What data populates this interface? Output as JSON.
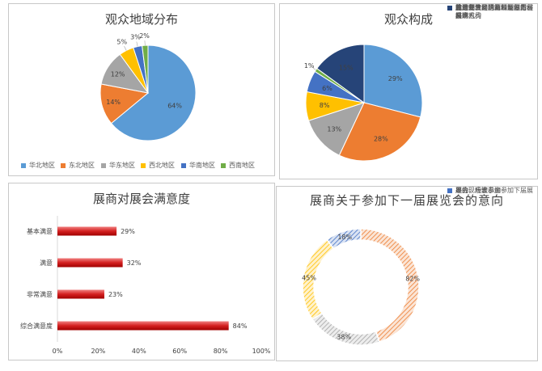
{
  "chart_data": [
    {
      "type": "pie",
      "title": "观众地域分布",
      "categories": [
        "华北地区",
        "东北地区",
        "华东地区",
        "西北地区",
        "华南地区",
        "西南地区"
      ],
      "values": [
        64,
        14,
        12,
        5,
        3,
        2
      ],
      "labels": [
        "64%",
        "14%",
        "12%",
        "5%",
        "3%",
        "2%"
      ],
      "colors": [
        "#5b9bd5",
        "#ed7d31",
        "#a5a5a5",
        "#ffc000",
        "#4472c4",
        "#70ad47"
      ],
      "legend": "bottom"
    },
    {
      "type": "pie",
      "title": "观众构成",
      "categories": [
        "施工单位、建筑公司、工程技术人员",
        "代理商、经销商、国际贸易商",
        "生产制造商、原料及设备供应商",
        "设计师、建筑师",
        "房产开发商、工程业主方、采购方",
        "政府主管部门、规划部门、科研机构",
        "其他"
      ],
      "values": [
        29,
        28,
        13,
        8,
        6,
        1,
        15
      ],
      "labels": [
        "29%",
        "28%",
        "13%",
        "8%",
        "6%",
        "1%",
        "15%"
      ],
      "colors": [
        "#5b9bd5",
        "#ed7d31",
        "#a5a5a5",
        "#ffc000",
        "#4472c4",
        "#70ad47",
        "#264478"
      ],
      "legend": "right"
    },
    {
      "type": "bar",
      "orientation": "horizontal",
      "title": "展商对展会满意度",
      "categories": [
        "基本满意",
        "满意",
        "非常满意",
        "综合满意度"
      ],
      "values": [
        29,
        32,
        23,
        84
      ],
      "labels": [
        "29%",
        "32%",
        "23%",
        "84%"
      ],
      "xlim": [
        0,
        100
      ],
      "xticks": [
        "0%",
        "20%",
        "40%",
        "60%",
        "80%",
        "100%"
      ],
      "color": "#c00000",
      "grid": false
    },
    {
      "type": "pie",
      "variant": "donut",
      "title": "展商关于参加下一届展览会的意向",
      "categories": [
        "展会现场表示会参加下届展会",
        "是的，一定参加",
        "是的，应该参加",
        "不会"
      ],
      "values": [
        82,
        38,
        45,
        18
      ],
      "labels": [
        "82%",
        "38%",
        "45%",
        "18%"
      ],
      "colors": [
        "#ed7d31",
        "#a5a5a5",
        "#ffc000",
        "#4472c4"
      ],
      "legend": "right"
    }
  ]
}
